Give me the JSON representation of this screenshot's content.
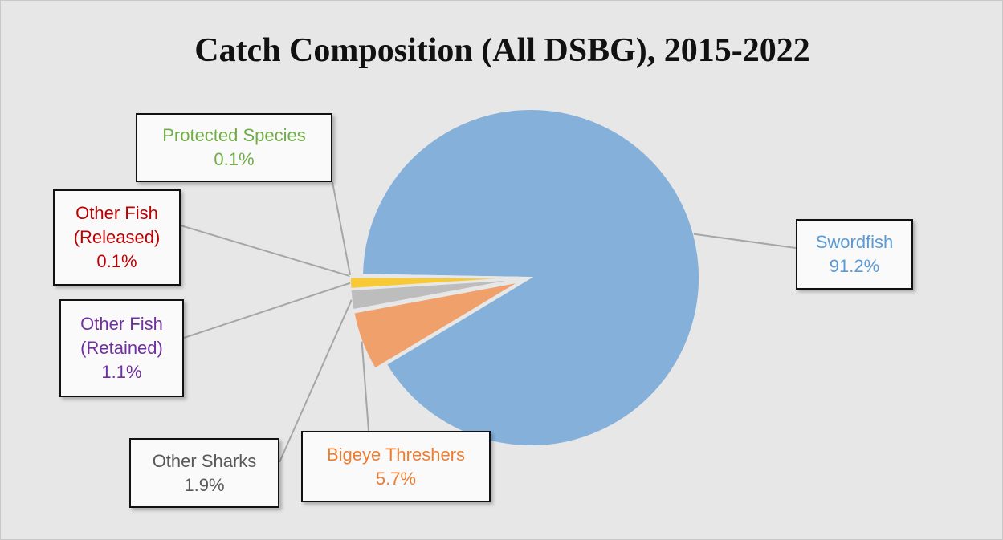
{
  "chart_data": {
    "type": "pie",
    "title": "Catch Composition (All DSBG), 2015-2022",
    "categories": [
      "Swordfish",
      "Bigeye Threshers",
      "Other Sharks",
      "Other Fish (Retained)",
      "Other Fish (Released)",
      "Protected Species"
    ],
    "values": [
      91.2,
      5.7,
      1.9,
      1.1,
      0.1,
      0.1
    ],
    "value_labels": [
      "91.2%",
      "5.7%",
      "1.9%",
      "1.1%",
      "0.1%",
      "0.1%"
    ],
    "colors": [
      "#85b0da",
      "#f0a06a",
      "#bdbdbd",
      "#f7c935",
      "#d9534f",
      "#70ad47"
    ],
    "label_colors": [
      "#5b9bd5",
      "#ed7d31",
      "#595959",
      "#7030a0",
      "#c00000",
      "#70ad47"
    ]
  }
}
